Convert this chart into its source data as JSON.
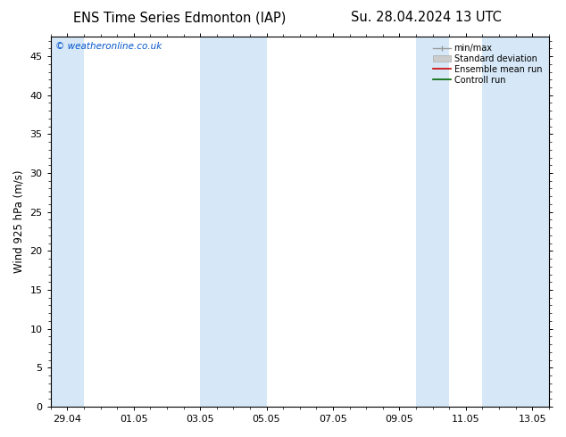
{
  "title_left": "ENS Time Series Edmonton (IAP)",
  "title_right": "Su. 28.04.2024 13 UTC",
  "ylabel": "Wind 925 hPa (m/s)",
  "ylim": [
    0,
    47.5
  ],
  "yticks": [
    0,
    5,
    10,
    15,
    20,
    25,
    30,
    35,
    40,
    45
  ],
  "xtick_labels": [
    "29.04",
    "01.05",
    "03.05",
    "05.05",
    "07.05",
    "09.05",
    "11.05",
    "13.05"
  ],
  "xtick_positions": [
    0.5,
    2.5,
    4.5,
    6.5,
    8.5,
    10.5,
    12.5,
    14.5
  ],
  "shaded_bands": [
    [
      0,
      1.0
    ],
    [
      4.5,
      6.5
    ],
    [
      11.0,
      12.0
    ],
    [
      13.0,
      15.0
    ]
  ],
  "shade_color": "#d6e8f7",
  "bg_color": "#ffffff",
  "plot_bg_color": "#ffffff",
  "watermark": "© weatheronline.co.uk",
  "watermark_color": "#0055cc",
  "legend_items": [
    "min/max",
    "Standard deviation",
    "Ensemble mean run",
    "Controll run"
  ],
  "legend_line_colors": [
    "#aaaaaa",
    "#cccccc",
    "#cc0000",
    "#006600"
  ],
  "title_fontsize": 10.5,
  "axis_label_fontsize": 8.5,
  "tick_fontsize": 8,
  "xlim": [
    0,
    15
  ]
}
